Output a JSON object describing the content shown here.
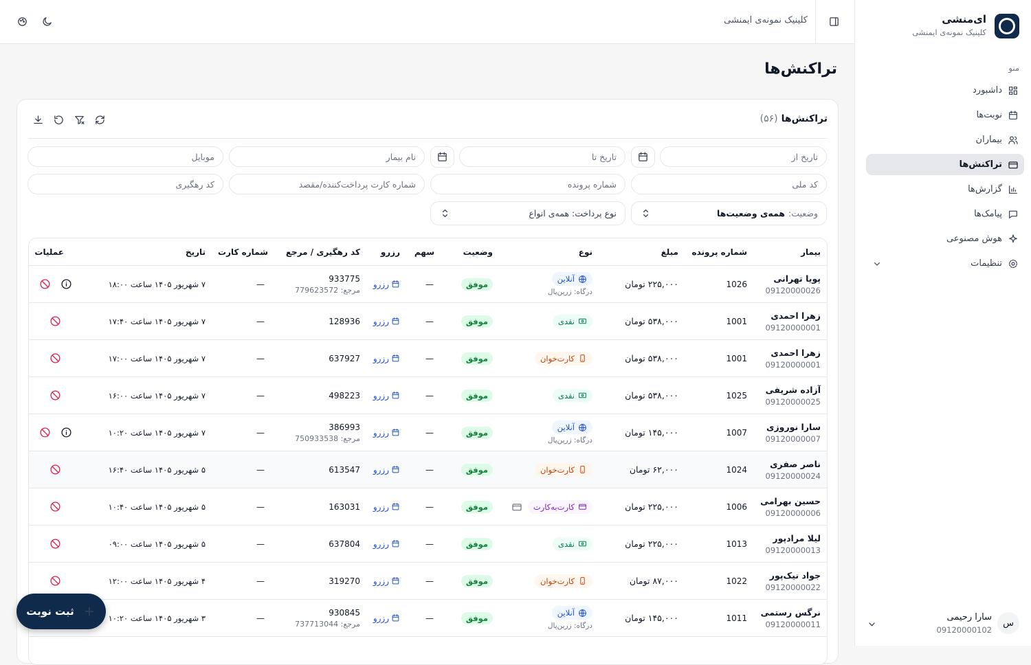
{
  "topbar": {
    "clinic": "کلینیک نمونه‌ی ایمنشی"
  },
  "sidebar": {
    "brand": "ای‌منشی",
    "subtitle": "کلینیک نمونه‌ی ایمنشی",
    "menu_label": "منو",
    "items": [
      "داشبورد",
      "نوبت‌ها",
      "بیماران",
      "تراکنش‌ها",
      "گزارش‌ها",
      "پیامک‌ها",
      "هوش مصنوعی",
      "تنظیمات"
    ],
    "active": 3,
    "user": {
      "avatar": "س",
      "name": "سارا رحیمی",
      "phone": "09120000102"
    }
  },
  "page_title": "تراکنش‌ها",
  "card": {
    "title": "تراکنش‌ها",
    "count": "(۵۶)"
  },
  "filters": {
    "date_from": "تاریخ از",
    "date_to": "تاریخ تا",
    "patient_name": "نام بیمار",
    "mobile": "موبایل",
    "national_code": "کد ملی",
    "file_number": "شماره پرونده",
    "card_number": "شماره کارت پرداخت‌کننده/مقصد",
    "tracking": "کد رهگیری",
    "status_label": "وضعیت:",
    "status_value": "همه‌ی وضعیت‌ها",
    "payment": "نوع پرداخت: همه‌ی انواع"
  },
  "table": {
    "columns": [
      "بیمار",
      "شماره پرونده",
      "مبلغ",
      "نوع",
      "وضعیت",
      "سهم",
      "رزرو",
      "کد رهگیری / مرجع",
      "شماره کارت",
      "تاریخ",
      "عملیات"
    ],
    "rows": [
      {
        "name": "پویا تهرانی",
        "phone": "09120000026",
        "file": "1026",
        "amount": "۲۲۵,۰۰۰ تومان",
        "type": "آنلاین",
        "type_color": "#1d4ed8",
        "gateway": "درگاه: زرین‌پال",
        "status": "موفق",
        "share": "—",
        "reserve": "رزرو",
        "tracking": "933775",
        "ref": "مرجع: 779623572",
        "card": "—",
        "date": "۷ شهریور ۱۴۰۵ ساعت ۱۸:۰۰"
      },
      {
        "name": "زهرا احمدی",
        "phone": "09120000001",
        "file": "1001",
        "amount": "۵۳۸,۰۰۰ تومان",
        "type": "نقدی",
        "type_color": "#047857",
        "status": "موفق",
        "share": "—",
        "reserve": "رزرو",
        "tracking": "128936",
        "card": "—",
        "date": "۷ شهریور ۱۴۰۵ ساعت ۱۷:۴۰"
      },
      {
        "name": "زهرا احمدی",
        "phone": "09120000001",
        "file": "1001",
        "amount": "۵۳۸,۰۰۰ تومان",
        "type": "کارت‌خوان",
        "type_color": "#c2410c",
        "status": "موفق",
        "share": "—",
        "reserve": "رزرو",
        "tracking": "637927",
        "card": "—",
        "date": "۷ شهریور ۱۴۰۵ ساعت ۱۷:۰۰"
      },
      {
        "name": "آزاده شریفی",
        "phone": "09120000025",
        "file": "1025",
        "amount": "۵۳۸,۰۰۰ تومان",
        "type": "نقدی",
        "type_color": "#047857",
        "status": "موفق",
        "share": "—",
        "reserve": "رزرو",
        "tracking": "498223",
        "card": "—",
        "date": "۷ شهریور ۱۴۰۵ ساعت ۱۶:۰۰"
      },
      {
        "name": "سارا نوروزی",
        "phone": "09120000007",
        "file": "1007",
        "amount": "۱۴۵,۰۰۰ تومان",
        "type": "آنلاین",
        "type_color": "#1d4ed8",
        "gateway": "درگاه: زرین‌پال",
        "status": "موفق",
        "share": "—",
        "reserve": "رزرو",
        "tracking": "386993",
        "ref": "مرجع: 750933538",
        "card": "—",
        "date": "۷ شهریور ۱۴۰۵ ساعت ۱۰:۲۰"
      },
      {
        "name": "ناصر صفری",
        "phone": "09120000024",
        "file": "1024",
        "amount": "۶۲,۰۰۰ تومان",
        "type": "کارت‌خوان",
        "type_color": "#c2410c",
        "status": "موفق",
        "share": "—",
        "reserve": "رزرو",
        "tracking": "613547",
        "card": "—",
        "date": "۵ شهریور ۱۴۰۵ ساعت ۱۶:۴۰"
      },
      {
        "name": "حسین بهرامی",
        "phone": "09120000006",
        "file": "1006",
        "amount": "۲۲۵,۰۰۰ تومان",
        "type": "کارت‌به‌کارت",
        "type_color": "#7e22ce",
        "status": "موفق",
        "share": "—",
        "reserve": "رزرو",
        "tracking": "163031",
        "card": "—",
        "date": "۵ شهریور ۱۴۰۵ ساعت ۱۰:۴۰"
      },
      {
        "name": "لیلا مرادپور",
        "phone": "09120000013",
        "file": "1013",
        "amount": "۲۲۵,۰۰۰ تومان",
        "type": "نقدی",
        "type_color": "#047857",
        "status": "موفق",
        "share": "—",
        "reserve": "رزرو",
        "tracking": "637804",
        "card": "—",
        "date": "۵ شهریور ۱۴۰۵ ساعت ۰۹:۰۰"
      },
      {
        "name": "جواد نیک‌پور",
        "phone": "09120000022",
        "file": "1022",
        "amount": "۸۷,۰۰۰ تومان",
        "type": "کارت‌خوان",
        "type_color": "#c2410c",
        "status": "موفق",
        "share": "—",
        "reserve": "رزرو",
        "tracking": "319270",
        "card": "—",
        "date": "۴ شهریور ۱۴۰۵ ساعت ۱۲:۰۰"
      },
      {
        "name": "نرگس رستمی",
        "phone": "09120000011",
        "file": "1011",
        "amount": "۱۴۵,۰۰۰ تومان",
        "type": "آنلاین",
        "type_color": "#1d4ed8",
        "gateway": "درگاه: زرین‌پال",
        "status": "موفق",
        "share": "—",
        "reserve": "رزرو",
        "tracking": "930845",
        "ref": "مرجع: 737713044",
        "card": "—",
        "date": "۳ شهریور ۱۴۰۵ ساعت ۱۰:۲۰"
      }
    ]
  },
  "fab": "ثبت نوبت"
}
